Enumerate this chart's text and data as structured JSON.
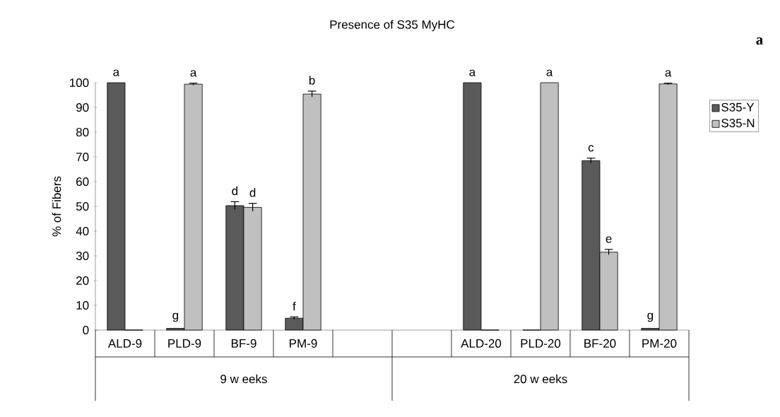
{
  "chart_data": {
    "type": "bar",
    "title": "Presence of S35 MyHC",
    "ylabel": "% of Fibers",
    "categories": [
      "ALD-9",
      "PLD-9",
      "BF-9",
      "PM-9",
      null,
      null,
      "ALD-20",
      "PLD-20",
      "BF-20",
      "PM-20"
    ],
    "series": [
      {
        "name": "S35-Y",
        "color": "#5a5a5a",
        "values": [
          100,
          0.7,
          50.3,
          4.8,
          null,
          null,
          100,
          0,
          68.5,
          0.7
        ],
        "errors": [
          null,
          null,
          1.6,
          0.5,
          null,
          null,
          null,
          null,
          1,
          null
        ]
      },
      {
        "name": "S35-N",
        "color": "#c0c0c0",
        "values": [
          0,
          99.4,
          49.6,
          95.4,
          null,
          null,
          0,
          100,
          31.5,
          99.5
        ],
        "errors": [
          null,
          0.4,
          1.6,
          1.2,
          null,
          null,
          null,
          null,
          1.1,
          0.3
        ]
      }
    ],
    "ylim": [
      0,
      100
    ],
    "yticks": [
      0,
      10,
      20,
      30,
      40,
      50,
      60,
      70,
      80,
      90,
      100
    ],
    "grid": false,
    "legend": "right",
    "annotations": [
      "a",
      "9 w eeks",
      "20 w eeks",
      {
        "text": "a",
        "x": "ALD-9",
        "y": 100
      },
      {
        "text": "g",
        "x": "PLD-9",
        "y": 0.7
      },
      {
        "text": "a",
        "x": "PLD-9",
        "y": 99.4
      },
      {
        "text": "d",
        "x": "BF-9",
        "y": 50.3
      },
      {
        "text": "d",
        "x": "BF-9",
        "y": 49.6
      },
      {
        "text": "f",
        "x": "PM-9",
        "y": 4.8
      },
      {
        "text": "b",
        "x": "PM-9",
        "y": 95.4
      },
      {
        "text": "a",
        "x": "ALD-20",
        "y": 100
      },
      {
        "text": "a",
        "x": "PLD-20",
        "y": 100
      },
      {
        "text": "c",
        "x": "BF-20",
        "y": 68.5
      },
      {
        "text": "e",
        "x": "BF-20",
        "y": 31.5
      },
      {
        "text": "g",
        "x": "PM-20",
        "y": 0.7
      },
      {
        "text": "a",
        "x": "PM-20",
        "y": 99.5
      }
    ]
  }
}
